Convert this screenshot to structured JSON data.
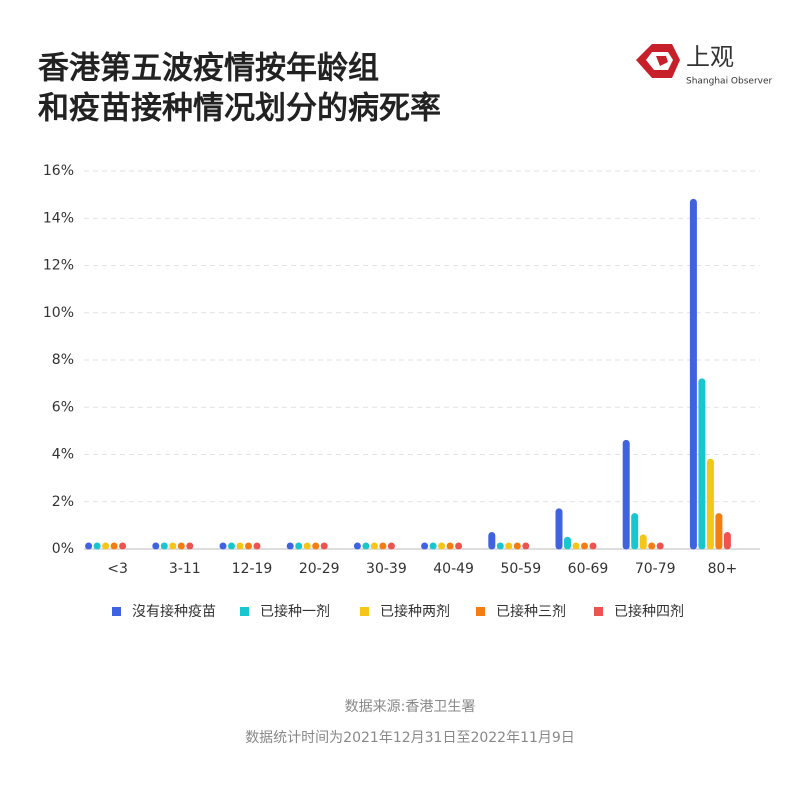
{
  "chart_data": {
    "type": "bar",
    "title": [
      "香港第五波疫情按年龄组",
      "和疫苗接种情况划分的病死率"
    ],
    "brand": {
      "name": "上观",
      "subtitle": "Shanghai Observer"
    },
    "categories": [
      "<3",
      "3-11",
      "12-19",
      "20-29",
      "30-39",
      "40-49",
      "50-59",
      "60-69",
      "70-79",
      "80+"
    ],
    "series": [
      {
        "name": "沒有接种疫苗",
        "color": "#3f63e0",
        "values": [
          0.01,
          0.01,
          0.01,
          0.01,
          0.01,
          0.1,
          0.7,
          1.7,
          4.6,
          14.8
        ]
      },
      {
        "name": "已接种一剂",
        "color": "#17c6cf",
        "values": [
          0,
          0.01,
          0.01,
          0.01,
          0.01,
          0.03,
          0.15,
          0.5,
          1.5,
          7.2
        ]
      },
      {
        "name": "已接种两剂",
        "color": "#f5c518",
        "values": [
          0,
          0,
          0,
          0.01,
          0,
          0.01,
          0.03,
          0.1,
          0.6,
          3.8
        ]
      },
      {
        "name": "已接种三剂",
        "color": "#f47d12",
        "values": [
          0,
          0,
          0,
          0,
          0,
          0.01,
          0.02,
          0.05,
          0.2,
          1.5
        ]
      },
      {
        "name": "已接种四剂",
        "color": "#ef5350",
        "values": [
          0,
          0,
          0,
          0,
          0,
          0.01,
          0.02,
          0.05,
          0.1,
          0.7
        ]
      }
    ],
    "ylim": [
      0,
      16
    ],
    "yticks": [
      {
        "value": 0,
        "label": "0%"
      },
      {
        "value": 2,
        "label": "2%"
      },
      {
        "value": 4,
        "label": "4%"
      },
      {
        "value": 6,
        "label": "6%"
      },
      {
        "value": 8,
        "label": "8%"
      },
      {
        "value": 10,
        "label": "10%"
      },
      {
        "value": 12,
        "label": "12%"
      },
      {
        "value": 14,
        "label": "14%"
      },
      {
        "value": 16,
        "label": "16%"
      }
    ],
    "grid": true,
    "notes": [
      "数据来源:香港卫生署",
      "数据统计时间为2021年12月31日至2022年11月9日"
    ]
  }
}
